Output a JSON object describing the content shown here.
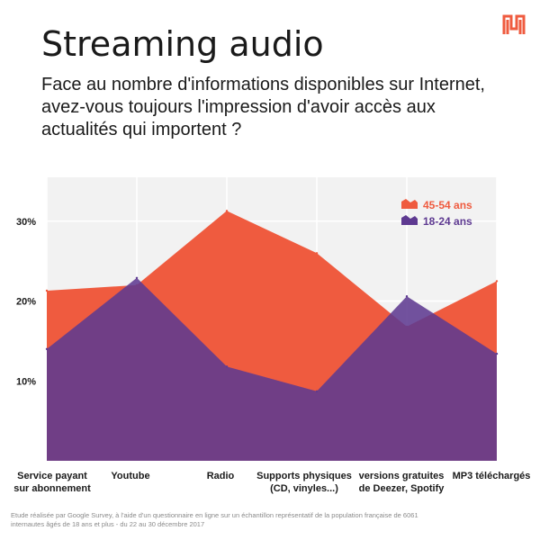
{
  "title": "Streaming audio",
  "subtitle": "Face au nombre d'informations disponibles sur Internet, avez-vous toujours l'impression d'avoir accès aux actualités qui importent ?",
  "source": "Etude réalisée par Google Survey, à l'aide d'un questionnaire en ligne sur un échantillon représentatif de la population française de 6061 internautes âgés de 18 ans et plus - du 22 au 30 décembre 2017",
  "logo_icon": "brand-logo-icon",
  "colors": {
    "series_45_54": "#EF5B3F",
    "series_18_24": "#5E3A91",
    "background": "#F2F2F2",
    "grid": "#FFFFFF"
  },
  "chart_data": {
    "type": "area",
    "title": "Streaming audio",
    "categories": [
      [
        "Service payant",
        "sur abonnement"
      ],
      [
        "Youtube"
      ],
      [
        "Radio"
      ],
      [
        "Supports physiques",
        "(CD, vinyles...)"
      ],
      [
        "versions gratuites",
        "de Deezer, Spotify"
      ],
      [
        "MP3 téléchargés"
      ]
    ],
    "series": [
      {
        "name": "45-54 ans",
        "color": "#EF5B3F",
        "values": [
          21.3,
          22.0,
          31.3,
          26.0,
          16.8,
          22.5
        ]
      },
      {
        "name": "18-24 ans",
        "color": "#5E3A91",
        "values": [
          14.0,
          22.9,
          11.8,
          8.7,
          20.6,
          13.4
        ]
      }
    ],
    "yticks": [
      10,
      20,
      30
    ],
    "ytick_labels": [
      "10%",
      "20%",
      "30%"
    ],
    "ylim": [
      0,
      35.5
    ],
    "grid": true,
    "legend": "top-right"
  }
}
